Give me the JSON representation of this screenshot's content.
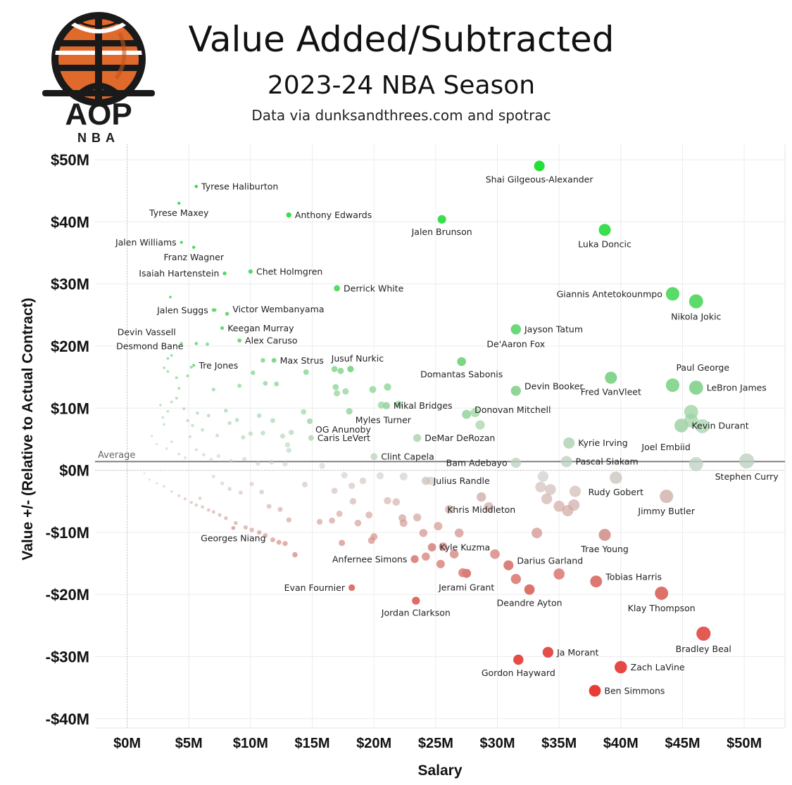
{
  "header": {
    "logo_text": "AOP",
    "logo_subtext": "NBA",
    "title": "Value Added/Subtracted",
    "subtitle": "2023-24 NBA Season",
    "source": "Data via dunksandthrees.com and spotrac"
  },
  "colors": {
    "positive": "#22e038",
    "neutral": "#c8cfc9",
    "negative": "#ea3a34",
    "logo_orange": "#e06a2c",
    "logo_dark": "#1a1a1a"
  },
  "chart_data": {
    "type": "scatter",
    "title": "Value Added/Subtracted",
    "subtitle": "2023-24 NBA Season",
    "xlabel": "Salary",
    "ylabel": "Value +/- (Relative to Actual Contract)",
    "xlim": [
      -2.6,
      53.3
    ],
    "ylim": [
      -41.5,
      52.5
    ],
    "x_ticks": [
      0,
      5,
      10,
      15,
      20,
      25,
      30,
      35,
      40,
      45,
      50
    ],
    "x_tick_labels": [
      "$0M",
      "$5M",
      "$10M",
      "$15M",
      "$20M",
      "$25M",
      "$30M",
      "$35M",
      "$40M",
      "$45M",
      "$50M"
    ],
    "y_ticks": [
      50,
      40,
      30,
      20,
      10,
      0,
      -10,
      -20,
      -30,
      -40
    ],
    "y_tick_labels": [
      "$50M",
      "$40M",
      "$30M",
      "$20M",
      "$10M",
      "$0M",
      "-$10M",
      "-$20M",
      "-$30M",
      "-$40M"
    ],
    "grid": true,
    "reference_line": {
      "label": "Average",
      "value": 1.4
    },
    "size_encoding": "salary",
    "color_encoding": "value (red negative to green positive)",
    "labeled_points": [
      {
        "name": "Shai Gilgeous-Alexander",
        "x": 33.4,
        "y": 49.0,
        "label_pos": "below"
      },
      {
        "name": "Tyrese Haliburton",
        "x": 5.6,
        "y": 45.7,
        "label_pos": "right"
      },
      {
        "name": "Tyrese Maxey",
        "x": 4.2,
        "y": 43.0,
        "label_pos": "below"
      },
      {
        "name": "Anthony Edwards",
        "x": 13.1,
        "y": 41.1,
        "label_pos": "right"
      },
      {
        "name": "Jalen Brunson",
        "x": 25.5,
        "y": 40.4,
        "label_pos": "below"
      },
      {
        "name": "Luka Doncic",
        "x": 38.7,
        "y": 38.7,
        "label_pos": "below"
      },
      {
        "name": "Jalen Williams",
        "x": 4.4,
        "y": 36.7,
        "label_pos": "left"
      },
      {
        "name": "Franz Wagner",
        "x": 5.4,
        "y": 35.9,
        "label_pos": "below"
      },
      {
        "name": "Isaiah Hartenstein",
        "x": 7.9,
        "y": 31.7,
        "label_pos": "left"
      },
      {
        "name": "Chet Holmgren",
        "x": 10.0,
        "y": 32.0,
        "label_pos": "right"
      },
      {
        "name": "Derrick White",
        "x": 17.0,
        "y": 29.3,
        "label_pos": "right"
      },
      {
        "name": "Giannis Antetokounmpo",
        "x": 44.2,
        "y": 28.4,
        "label_pos": "left"
      },
      {
        "name": "Nikola Jokic",
        "x": 46.1,
        "y": 27.2,
        "label_pos": "below"
      },
      {
        "name": "Jalen Suggs",
        "x": 7.0,
        "y": 25.8,
        "label_pos": "left"
      },
      {
        "name": "Victor Wembanyama",
        "x": 8.1,
        "y": 25.2,
        "label_pos": "right-up"
      },
      {
        "name": "Keegan Murray",
        "x": 7.7,
        "y": 22.9,
        "label_pos": "right"
      },
      {
        "name": "Jayson Tatum",
        "x": 31.5,
        "y": 22.7,
        "label_pos": "right"
      },
      {
        "name": "Alex Caruso",
        "x": 9.1,
        "y": 20.9,
        "label_pos": "right"
      },
      {
        "name": "Devin Vassell",
        "x": 4.4,
        "y": 20.4,
        "label_pos": "above-left"
      },
      {
        "name": "Desmond Bane",
        "x": 5.6,
        "y": 20.4,
        "label_pos": "left-far"
      },
      {
        "name": "Tre Jones",
        "x": 5.4,
        "y": 16.9,
        "label_pos": "right"
      },
      {
        "name": "Max Strus",
        "x": 11.9,
        "y": 17.7,
        "label_pos": "right"
      },
      {
        "name": "De'Aaron Fox",
        "x": 31.5,
        "y": 22.7,
        "label_pos": "below-left"
      },
      {
        "name": "Jusuf Nurkic",
        "x": 18.1,
        "y": 16.3,
        "label_pos": "above"
      },
      {
        "name": "Domantas Sabonis",
        "x": 27.1,
        "y": 17.5,
        "label_pos": "below"
      },
      {
        "name": "Devin Booker",
        "x": 31.5,
        "y": 12.8,
        "label_pos": "right-up"
      },
      {
        "name": "Fred VanVleet",
        "x": 39.2,
        "y": 14.9,
        "label_pos": "below"
      },
      {
        "name": "Paul George",
        "x": 44.2,
        "y": 13.7,
        "label_pos": "above-right"
      },
      {
        "name": "LeBron James",
        "x": 46.1,
        "y": 13.3,
        "label_pos": "right"
      },
      {
        "name": "Mikal Bridges",
        "x": 21.0,
        "y": 10.4,
        "label_pos": "right"
      },
      {
        "name": "Donovan Mitchell",
        "x": 27.5,
        "y": 9.0,
        "label_pos": "right-up"
      },
      {
        "name": "Myles Turner",
        "x": 18.0,
        "y": 9.5,
        "label_pos": "below-right"
      },
      {
        "name": "OG Anunoby",
        "x": 14.8,
        "y": 7.9,
        "label_pos": "below-right"
      },
      {
        "name": "Caris LeVert",
        "x": 14.9,
        "y": 5.2,
        "label_pos": "right"
      },
      {
        "name": "DeMar DeRozan",
        "x": 23.5,
        "y": 5.2,
        "label_pos": "right"
      },
      {
        "name": "Kyrie Irving",
        "x": 35.8,
        "y": 4.4,
        "label_pos": "right"
      },
      {
        "name": "Kevin Durant",
        "x": 44.9,
        "y": 7.2,
        "label_pos": "right"
      },
      {
        "name": "Joel Embiid",
        "x": 46.1,
        "y": 1.0,
        "label_pos": "above-left"
      },
      {
        "name": "Stephen Curry",
        "x": 50.2,
        "y": 1.5,
        "label_pos": "below"
      },
      {
        "name": "Clint Capela",
        "x": 20.0,
        "y": 2.2,
        "label_pos": "right"
      },
      {
        "name": "Bam Adebayo",
        "x": 31.5,
        "y": 1.2,
        "label_pos": "left"
      },
      {
        "name": "Pascal Siakam",
        "x": 35.6,
        "y": 1.4,
        "label_pos": "right"
      },
      {
        "name": "Rudy Gobert",
        "x": 39.6,
        "y": -1.2,
        "label_pos": "below"
      },
      {
        "name": "Julius Randle",
        "x": 24.2,
        "y": -1.7,
        "label_pos": "right"
      },
      {
        "name": "Jimmy Butler",
        "x": 43.7,
        "y": -4.2,
        "label_pos": "below"
      },
      {
        "name": "Khris Middleton",
        "x": 28.7,
        "y": -4.3,
        "label_pos": "below"
      },
      {
        "name": "Trae Young",
        "x": 38.7,
        "y": -10.4,
        "label_pos": "below"
      },
      {
        "name": "Kyle Kuzma",
        "x": 24.7,
        "y": -12.4,
        "label_pos": "right"
      },
      {
        "name": "Georges Niang",
        "x": 8.6,
        "y": -9.3,
        "label_pos": "below"
      },
      {
        "name": "Anfernee Simons",
        "x": 23.3,
        "y": -14.3,
        "label_pos": "left"
      },
      {
        "name": "Darius Garland",
        "x": 30.9,
        "y": -15.3,
        "label_pos": "right-up"
      },
      {
        "name": "Tobias Harris",
        "x": 38.0,
        "y": -17.9,
        "label_pos": "right-up"
      },
      {
        "name": "Evan Fournier",
        "x": 18.2,
        "y": -18.9,
        "label_pos": "left"
      },
      {
        "name": "Jerami Grant",
        "x": 27.5,
        "y": -16.6,
        "label_pos": "below-left"
      },
      {
        "name": "Klay Thompson",
        "x": 43.3,
        "y": -19.8,
        "label_pos": "below"
      },
      {
        "name": "Deandre Ayton",
        "x": 32.6,
        "y": -19.2,
        "label_pos": "below"
      },
      {
        "name": "Jordan Clarkson",
        "x": 23.4,
        "y": -21.0,
        "label_pos": "below"
      },
      {
        "name": "Bradley Beal",
        "x": 46.7,
        "y": -26.3,
        "label_pos": "below"
      },
      {
        "name": "Ja Morant",
        "x": 34.1,
        "y": -29.3,
        "label_pos": "right"
      },
      {
        "name": "Gordon Hayward",
        "x": 31.7,
        "y": -30.5,
        "label_pos": "below"
      },
      {
        "name": "Zach LaVine",
        "x": 40.0,
        "y": -31.7,
        "label_pos": "right"
      },
      {
        "name": "Ben Simmons",
        "x": 37.9,
        "y": -35.5,
        "label_pos": "right"
      }
    ],
    "unlabeled_points": [
      [
        3.5,
        27.9
      ],
      [
        7.1,
        25.8
      ],
      [
        3.3,
        18.0
      ],
      [
        3.6,
        18.5
      ],
      [
        6.5,
        20.3
      ],
      [
        5.2,
        16.6
      ],
      [
        7.0,
        13.0
      ],
      [
        9.1,
        13.6
      ],
      [
        11.2,
        14.0
      ],
      [
        12.1,
        13.9
      ],
      [
        10.2,
        15.7
      ],
      [
        14.5,
        15.8
      ],
      [
        16.8,
        16.3
      ],
      [
        17.3,
        16.0
      ],
      [
        11.0,
        17.7
      ],
      [
        3.0,
        16.5
      ],
      [
        3.3,
        15.9
      ],
      [
        4.0,
        14.9
      ],
      [
        4.2,
        13.2
      ],
      [
        4.9,
        15.2
      ],
      [
        2.7,
        10.5
      ],
      [
        2.9,
        8.5
      ],
      [
        3.0,
        7.4
      ],
      [
        3.3,
        9.5
      ],
      [
        3.6,
        11.0
      ],
      [
        4.0,
        11.6
      ],
      [
        4.6,
        9.9
      ],
      [
        4.9,
        8.0
      ],
      [
        5.3,
        7.2
      ],
      [
        5.7,
        9.2
      ],
      [
        6.1,
        6.5
      ],
      [
        6.6,
        8.8
      ],
      [
        7.3,
        5.6
      ],
      [
        8.0,
        9.6
      ],
      [
        8.3,
        7.6
      ],
      [
        8.9,
        8.1
      ],
      [
        9.4,
        5.3
      ],
      [
        10.0,
        5.9
      ],
      [
        10.7,
        8.8
      ],
      [
        11.0,
        6.0
      ],
      [
        11.8,
        8.0
      ],
      [
        12.6,
        5.5
      ],
      [
        13.0,
        4.1
      ],
      [
        13.3,
        6.1
      ],
      [
        13.1,
        3.2
      ],
      [
        14.3,
        9.4
      ],
      [
        16.9,
        13.4
      ],
      [
        17.0,
        12.4
      ],
      [
        17.7,
        12.7
      ],
      [
        19.9,
        13.0
      ],
      [
        21.1,
        13.4
      ],
      [
        20.6,
        10.5
      ],
      [
        22.0,
        10.6
      ],
      [
        28.6,
        7.3
      ],
      [
        28.2,
        9.3
      ],
      [
        45.7,
        9.4
      ],
      [
        45.7,
        8.0
      ],
      [
        46.6,
        7.1
      ],
      [
        2.0,
        5.5
      ],
      [
        2.4,
        4.2
      ],
      [
        3.2,
        3.5
      ],
      [
        3.6,
        4.6
      ],
      [
        4.2,
        2.6
      ],
      [
        4.7,
        2.0
      ],
      [
        5.1,
        5.4
      ],
      [
        5.6,
        3.3
      ],
      [
        6.2,
        2.5
      ],
      [
        6.8,
        1.7
      ],
      [
        7.4,
        2.3
      ],
      [
        8.4,
        1.5
      ],
      [
        9.5,
        1.8
      ],
      [
        10.6,
        1.1
      ],
      [
        11.7,
        1.3
      ],
      [
        12.8,
        1.0
      ],
      [
        15.8,
        0.7
      ],
      [
        17.6,
        -0.8
      ],
      [
        19.1,
        -1.7
      ],
      [
        20.5,
        -0.9
      ],
      [
        22.4,
        -1.0
      ],
      [
        33.7,
        -1.0
      ],
      [
        33.5,
        -2.7
      ],
      [
        34.3,
        -3.1
      ],
      [
        34.0,
        -4.6
      ],
      [
        36.3,
        -3.4
      ],
      [
        35.0,
        -5.8
      ],
      [
        36.2,
        -5.6
      ],
      [
        35.7,
        -6.5
      ],
      [
        1.4,
        -0.5
      ],
      [
        1.8,
        -1.5
      ],
      [
        2.4,
        -2.1
      ],
      [
        3.0,
        -2.6
      ],
      [
        3.6,
        -3.4
      ],
      [
        4.2,
        -4.1
      ],
      [
        4.7,
        -4.6
      ],
      [
        5.2,
        -5.2
      ],
      [
        5.6,
        -5.6
      ],
      [
        6.1,
        -5.9
      ],
      [
        6.6,
        -6.4
      ],
      [
        7.0,
        -6.7
      ],
      [
        7.5,
        -7.2
      ],
      [
        8.0,
        -7.7
      ],
      [
        8.8,
        -8.5
      ],
      [
        9.6,
        -9.2
      ],
      [
        10.1,
        -9.6
      ],
      [
        10.7,
        -10.0
      ],
      [
        11.2,
        -10.5
      ],
      [
        11.8,
        -11.2
      ],
      [
        12.3,
        -11.6
      ],
      [
        12.8,
        -11.8
      ],
      [
        13.6,
        -13.6
      ],
      [
        15.6,
        -8.3
      ],
      [
        16.6,
        -8.1
      ],
      [
        17.4,
        -11.7
      ],
      [
        17.2,
        -7.0
      ],
      [
        18.7,
        -8.5
      ],
      [
        18.3,
        -5.0
      ],
      [
        19.6,
        -7.2
      ],
      [
        20.0,
        -10.7
      ],
      [
        19.8,
        -11.3
      ],
      [
        21.1,
        -4.9
      ],
      [
        22.3,
        -7.7
      ],
      [
        22.4,
        -8.5
      ],
      [
        23.5,
        -7.6
      ],
      [
        24.0,
        -10.1
      ],
      [
        25.2,
        -9.0
      ],
      [
        26.1,
        -6.3
      ],
      [
        26.9,
        -10.1
      ],
      [
        29.3,
        -5.9
      ],
      [
        25.6,
        -12.3
      ],
      [
        26.5,
        -13.5
      ],
      [
        25.4,
        -15.1
      ],
      [
        27.2,
        -16.5
      ],
      [
        24.2,
        -13.9
      ],
      [
        21.8,
        -5.1
      ],
      [
        5.9,
        -4.5
      ],
      [
        7.0,
        -1.0
      ],
      [
        7.7,
        -2.1
      ],
      [
        8.3,
        -3.0
      ],
      [
        9.2,
        -3.6
      ],
      [
        10.1,
        -2.2
      ],
      [
        10.9,
        -3.5
      ],
      [
        11.5,
        -5.8
      ],
      [
        12.4,
        -6.3
      ],
      [
        13.1,
        -8.0
      ],
      [
        14.4,
        -2.3
      ],
      [
        16.8,
        -3.3
      ],
      [
        18.2,
        -2.5
      ],
      [
        24.6,
        -1.7
      ],
      [
        29.8,
        -13.5
      ],
      [
        33.2,
        -10.1
      ],
      [
        35.0,
        -16.7
      ],
      [
        31.5,
        -17.5
      ]
    ]
  }
}
